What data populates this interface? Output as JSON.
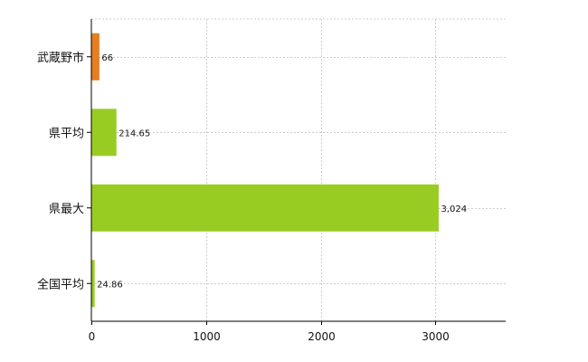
{
  "chart_data": {
    "type": "bar",
    "orientation": "horizontal",
    "categories": [
      "武蔵野市",
      "県平均",
      "県最大",
      "全国平均"
    ],
    "values": [
      66,
      214.65,
      3024,
      24.86
    ],
    "value_labels": [
      "66",
      "214.65",
      "3,024",
      "24.86"
    ],
    "colors": [
      "#e67e22",
      "#99cc22",
      "#99cc22",
      "#99cc22"
    ],
    "x_ticks": [
      "0",
      "1000",
      "2000",
      "3000"
    ],
    "xlim": [
      0,
      3600
    ],
    "grid": true,
    "legend": "none"
  }
}
